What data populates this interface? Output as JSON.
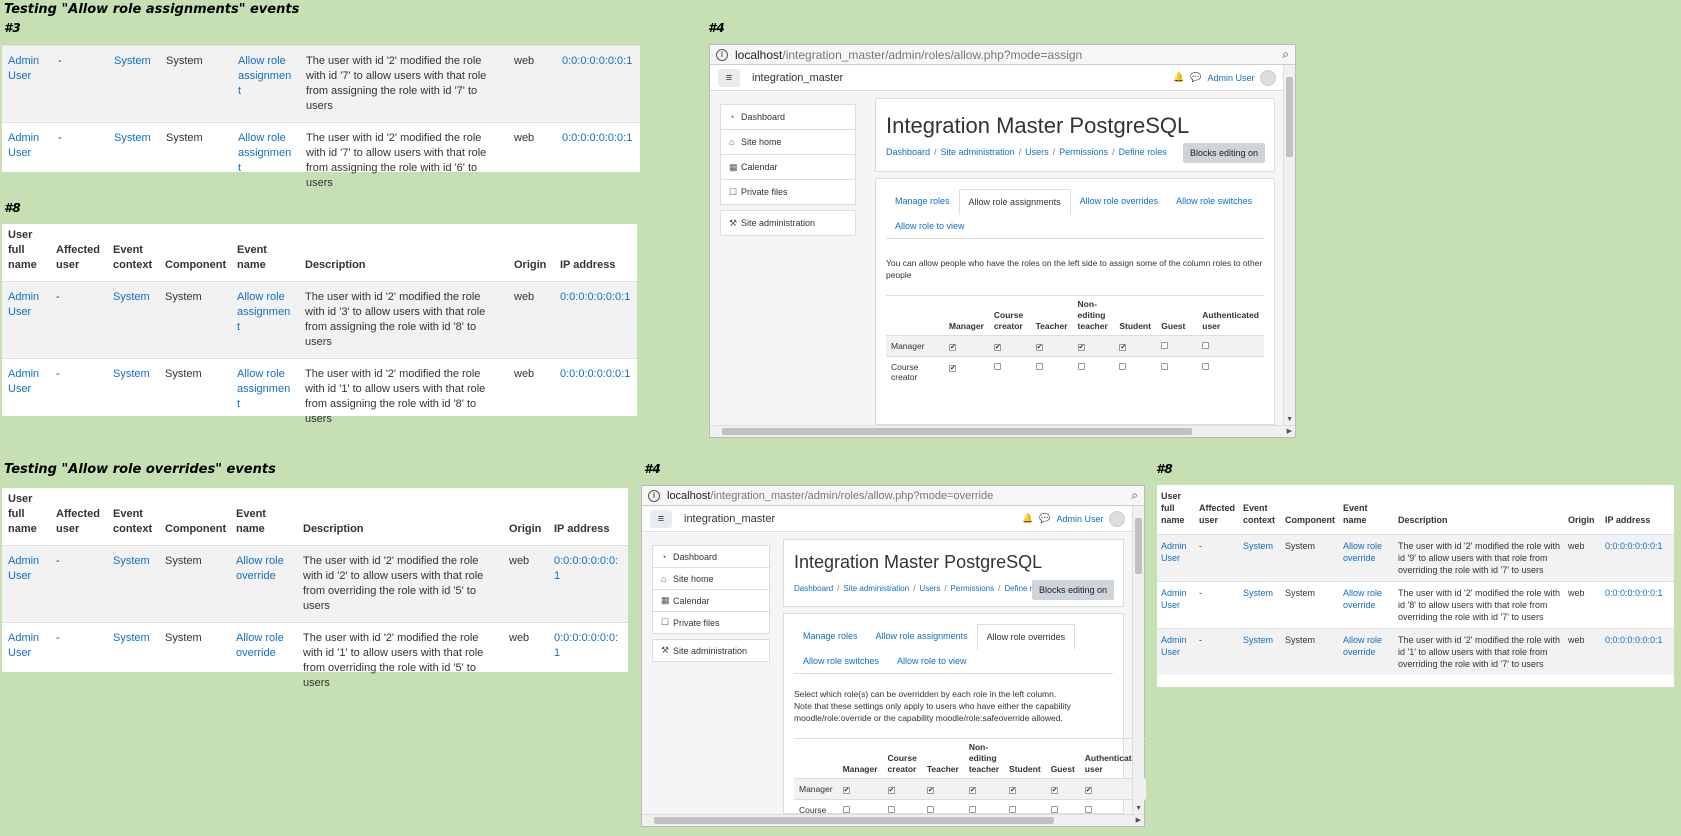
{
  "headings": {
    "assignments": "Testing \"Allow role assignments\" events",
    "overrides": "Testing \"Allow role overrides\" events"
  },
  "tags": {
    "t3": "#3",
    "t8a": "#8",
    "t4a": "#4",
    "t4b": "#4",
    "t8b": "#8"
  },
  "log_columns": [
    "User full name",
    "Affected user",
    "Event context",
    "Component",
    "Event name",
    "Description",
    "Origin",
    "IP address"
  ],
  "log3": [
    {
      "user": "Admin User",
      "affected": "-",
      "context": "System",
      "component": "System",
      "event": "Allow role assignment",
      "desc": "The user with id '2' modified the role with id '7' to allow users with that role from assigning the role with id '7' to users",
      "origin": "web",
      "ip": "0:0:0:0:0:0:0:1"
    },
    {
      "user": "Admin User",
      "affected": "-",
      "context": "System",
      "component": "System",
      "event": "Allow role assignment",
      "desc": "The user with id '2' modified the role with id '7' to allow users with that role from assigning the role with id '6' to users",
      "origin": "web",
      "ip": "0:0:0:0:0:0:0:1"
    }
  ],
  "log8a": [
    {
      "user": "Admin User",
      "affected": "-",
      "context": "System",
      "component": "System",
      "event": "Allow role assignment",
      "desc": "The user with id '2' modified the role with id '3' to allow users with that role from assigning the role with id '8' to users",
      "origin": "web",
      "ip": "0:0:0:0:0:0:0:1"
    },
    {
      "user": "Admin User",
      "affected": "-",
      "context": "System",
      "component": "System",
      "event": "Allow role assignment",
      "desc": "The user with id '2' modified the role with id '1' to allow users with that role from assigning the role with id '8' to users",
      "origin": "web",
      "ip": "0:0:0:0:0:0:0:1"
    }
  ],
  "logo": [
    {
      "user": "Admin User",
      "affected": "-",
      "context": "System",
      "component": "System",
      "event": "Allow role override",
      "desc": "The user with id '2' modified the role with id '2' to allow users with that role from overriding the role with id '5' to users",
      "origin": "web",
      "ip": "0:0:0:0:0:0:0:1"
    },
    {
      "user": "Admin User",
      "affected": "-",
      "context": "System",
      "component": "System",
      "event": "Allow role override",
      "desc": "The user with id '2' modified the role with id '1' to allow users with that role from overriding the role with id '5' to users",
      "origin": "web",
      "ip": "0:0:0:0:0:0:0:1"
    }
  ],
  "log8b": [
    {
      "user": "Admin User",
      "affected": "-",
      "context": "System",
      "component": "System",
      "event": "Allow role override",
      "desc": "The user with id '2' modified the role with id '9' to allow users with that role from overriding the role with id '7' to users",
      "origin": "web",
      "ip": "0:0:0:0:0:0:0:1"
    },
    {
      "user": "Admin User",
      "affected": "-",
      "context": "System",
      "component": "System",
      "event": "Allow role override",
      "desc": "The user with id '2' modified the role with id '8' to allow users with that role from overriding the role with id '7' to users",
      "origin": "web",
      "ip": "0:0:0:0:0:0:0:1"
    },
    {
      "user": "Admin User",
      "affected": "-",
      "context": "System",
      "component": "System",
      "event": "Allow role override",
      "desc": "The user with id '2' modified the role with id '1' to allow users with that role from overriding the role with id '7' to users",
      "origin": "web",
      "ip": "0:0:0:0:0:0:0:1"
    }
  ],
  "common": {
    "site_name": "integration_master",
    "user_menu": "Admin User",
    "page_title": "Integration Master PostgreSQL",
    "breadcrumbs": [
      "Dashboard",
      "Site administration",
      "Users",
      "Permissions",
      "Define roles"
    ],
    "edit_button": "Blocks editing on",
    "nav_blocks": [
      "Dashboard",
      "Site home",
      "Calendar",
      "Private files",
      "Site administration"
    ],
    "tabs": [
      "Manage roles",
      "Allow role assignments",
      "Allow role overrides",
      "Allow role switches",
      "Allow role to view"
    ],
    "grid_columns": [
      "Manager",
      "Course creator",
      "Teacher",
      "Non-editing teacher",
      "Student",
      "Guest",
      "Authenticated user"
    ],
    "grid_rows": [
      "Manager",
      "Course creator"
    ]
  },
  "browser_assign": {
    "url_host": "localhost",
    "url_path": "/integration_master/admin/roles/allow.php?mode=assign",
    "active_tab": 1,
    "note1": "You can allow people who have the roles on the left side to assign some of the column roles to other people",
    "note2": "",
    "checks": [
      [
        true,
        true,
        true,
        true,
        true,
        false,
        false
      ],
      [
        true,
        false,
        false,
        false,
        false,
        false,
        false
      ]
    ]
  },
  "browser_override": {
    "url_host": "localhost",
    "url_path": "/integration_master/admin/roles/allow.php?mode=override",
    "active_tab": 2,
    "note1": "Select which role(s) can be overridden by each role in the left column.",
    "note2": "Note that these settings only apply to users who have either the capability moodle/role:override or the capability moodle/role:safeoverride allowed.",
    "checks": [
      [
        true,
        true,
        true,
        true,
        true,
        true,
        true
      ],
      [
        false,
        false,
        false,
        false,
        false,
        false,
        false
      ]
    ]
  }
}
